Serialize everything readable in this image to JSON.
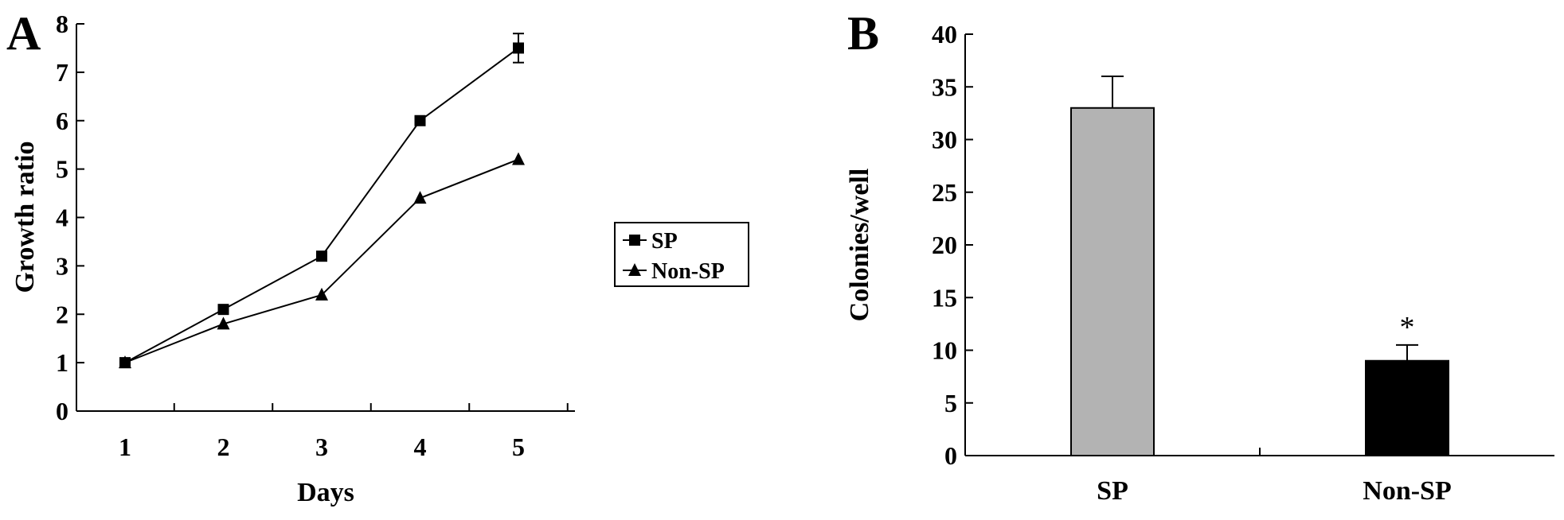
{
  "panels": {
    "a_label": "A",
    "b_label": "B"
  },
  "chart_data": [
    {
      "type": "line",
      "title": "",
      "xlabel": "Days",
      "ylabel": "Growth ratio",
      "x": [
        1,
        2,
        3,
        4,
        5
      ],
      "xlim": [
        0.5,
        5.5
      ],
      "ylim": [
        0,
        8
      ],
      "yticks": [
        0,
        1,
        2,
        3,
        4,
        5,
        6,
        7,
        8
      ],
      "grid": false,
      "legend_position": "right",
      "series": [
        {
          "name": "SP",
          "marker": "square",
          "values": [
            1.0,
            2.1,
            3.2,
            6.0,
            7.5
          ],
          "error_last": 0.3
        },
        {
          "name": "Non-SP",
          "marker": "triangle",
          "values": [
            1.0,
            1.8,
            2.4,
            4.4,
            5.2
          ]
        }
      ]
    },
    {
      "type": "bar",
      "title": "",
      "xlabel": "",
      "ylabel": "Colonies/well",
      "categories": [
        "SP",
        "Non-SP"
      ],
      "values": [
        33,
        9
      ],
      "errors": [
        3,
        1.5
      ],
      "colors": [
        "#b3b3b3",
        "#000000"
      ],
      "annotations": [
        "",
        "*"
      ],
      "ylim": [
        0,
        40
      ],
      "yticks": [
        0,
        5,
        10,
        15,
        20,
        25,
        30,
        35,
        40
      ],
      "grid": false
    }
  ]
}
